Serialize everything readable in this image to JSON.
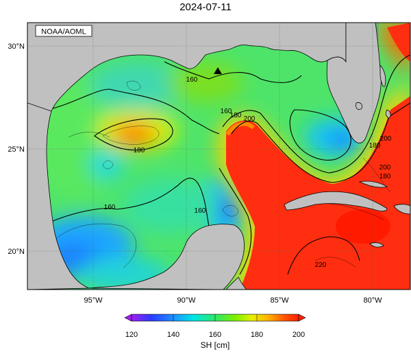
{
  "title": "2024-07-11",
  "credit": "NOAA/AOML",
  "lat_labels": [
    "30°N",
    "25°N",
    "20°N"
  ],
  "lon_labels": [
    "95°W",
    "90°W",
    "85°W",
    "80°W"
  ],
  "contour_labels": [
    "160",
    "160",
    "180",
    "200",
    "180",
    "160",
    "160",
    "180",
    "200",
    "220",
    "200",
    "180"
  ],
  "colorbar": {
    "label": "SH [cm]",
    "ticks": [
      "120",
      "140",
      "160",
      "180",
      "200"
    ],
    "colors": [
      "#a020f0",
      "#2b3bff",
      "#1e90ff",
      "#00e5e5",
      "#2ee86a",
      "#7df000",
      "#e6f000",
      "#ffb000",
      "#ff5000",
      "#ff2000"
    ]
  },
  "colors": {
    "land": "#c0c0c0",
    "frame": "#000000",
    "grid": "#555555"
  },
  "marker": "triangle-marker"
}
